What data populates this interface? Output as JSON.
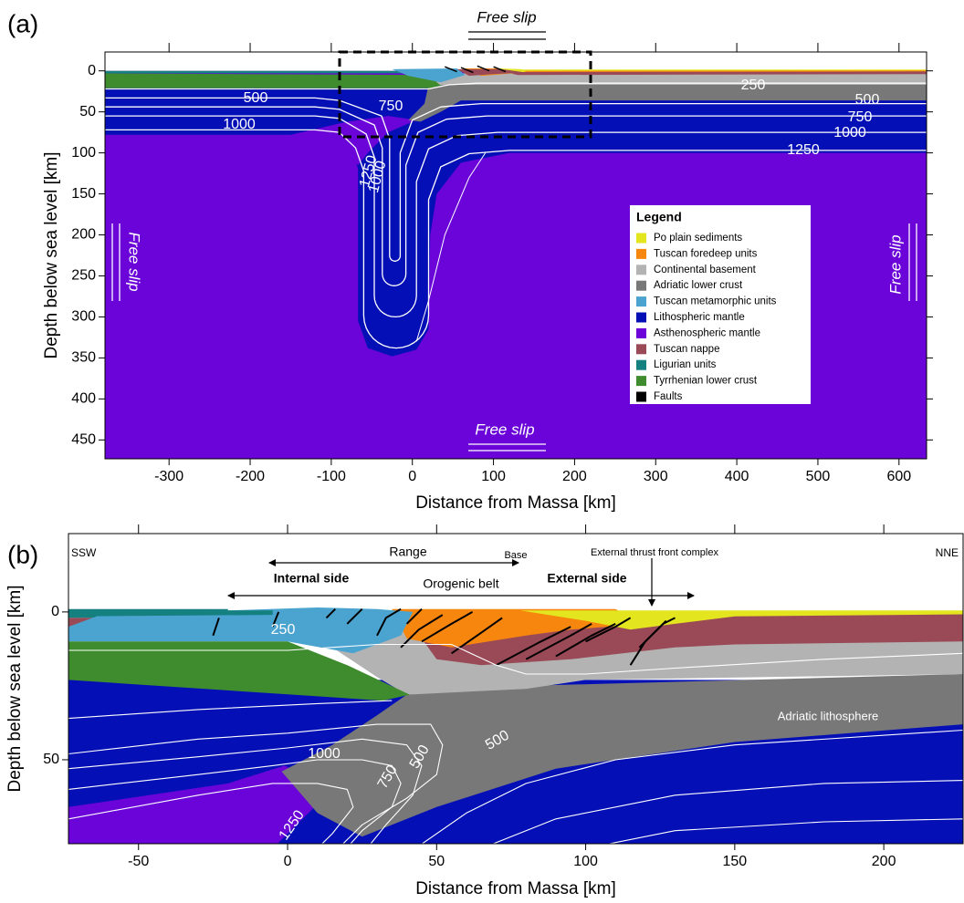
{
  "chart_data": [
    {
      "type": "cross-section",
      "panel_label": "(a)",
      "xlabel": "Distance from Massa [km]",
      "ylabel": "Depth below sea level [km]",
      "xlim": [
        -379,
        634
      ],
      "ylim": [
        473,
        -23
      ],
      "xticks": [
        -300,
        -200,
        -100,
        0,
        100,
        200,
        300,
        400,
        500,
        600
      ],
      "yticks": [
        0,
        50,
        100,
        150,
        200,
        250,
        300,
        350,
        400,
        450
      ],
      "annotations": [
        "Free slip",
        "Free slip",
        "Free slip",
        "Free slip"
      ],
      "isotherm_labels": [
        500,
        750,
        1000,
        250,
        500,
        750,
        1000,
        1250,
        1250,
        1000
      ],
      "legend": {
        "title": "Legend",
        "items": [
          {
            "name": "Po plain sediments",
            "color": "#e3e61e"
          },
          {
            "name": "Tuscan foredeep units",
            "color": "#f7860f"
          },
          {
            "name": "Continental basement",
            "color": "#b3b3b3"
          },
          {
            "name": "Adriatic lower crust",
            "color": "#787878"
          },
          {
            "name": "Tuscan metamorphic units",
            "color": "#4ba4d0"
          },
          {
            "name": "Lithospheric mantle",
            "color": "#0410b6"
          },
          {
            "name": "Asthenospheric mantle",
            "color": "#6a04d8"
          },
          {
            "name": "Tuscan nappe",
            "color": "#9a4a56"
          },
          {
            "name": "Ligurian units",
            "color": "#14807f"
          },
          {
            "name": "Tyrrhenian lower crust",
            "color": "#3f8c2f"
          },
          {
            "name": "Faults",
            "color": "#000000"
          }
        ]
      }
    },
    {
      "type": "cross-section",
      "panel_label": "(b)",
      "xlabel": "Distance from Massa [km]",
      "ylabel": "Depth below sea level [km]",
      "xlim": [
        -73.5,
        226.6
      ],
      "ylim": [
        78.4,
        -26.5
      ],
      "xticks": [
        -50,
        0,
        50,
        100,
        150,
        200
      ],
      "yticks": [
        0,
        50
      ],
      "annotations": [
        "SSW",
        "NNE",
        "Range",
        "Base",
        "External thrust front complex",
        "Internal side",
        "External side",
        "Orogenic belt",
        "Adriatic lithosphere"
      ],
      "isotherm_labels": [
        250,
        500,
        1000,
        750,
        1250,
        500
      ]
    }
  ]
}
